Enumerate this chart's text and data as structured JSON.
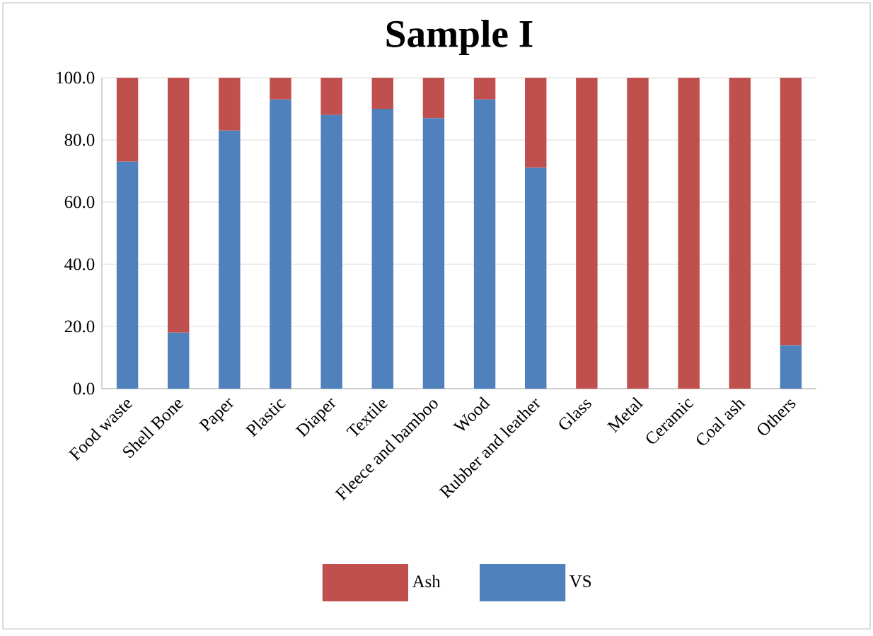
{
  "chart_data": {
    "type": "bar",
    "title": "Sample I",
    "stacked": true,
    "categories": [
      "Food waste",
      "Shell Bone",
      "Paper",
      "Plastic",
      "Diaper",
      "Textile",
      "Fleece and bamboo",
      "Wood",
      "Rubber and leather",
      "Glass",
      "Metal",
      "Ceramic",
      "Coal ash",
      "Others"
    ],
    "series": [
      {
        "name": "VS",
        "color": "#4f81bd",
        "values": [
          73,
          18,
          83,
          93,
          88,
          90,
          87,
          93,
          71,
          0,
          0,
          0,
          0,
          14
        ]
      },
      {
        "name": "Ash",
        "color": "#c0504d",
        "values": [
          27,
          82,
          17,
          7,
          12,
          10,
          13,
          7,
          29,
          100,
          100,
          100,
          100,
          86
        ]
      }
    ],
    "ylim": [
      0,
      100
    ],
    "yticks": [
      {
        "value": 0,
        "label": "0.0"
      },
      {
        "value": 20,
        "label": "20.0"
      },
      {
        "value": 40,
        "label": "40.0"
      },
      {
        "value": 60,
        "label": "60.0"
      },
      {
        "value": 80,
        "label": "80.0"
      },
      {
        "value": 100,
        "label": "100.0"
      }
    ],
    "grid": "y",
    "legend": "bottom"
  }
}
